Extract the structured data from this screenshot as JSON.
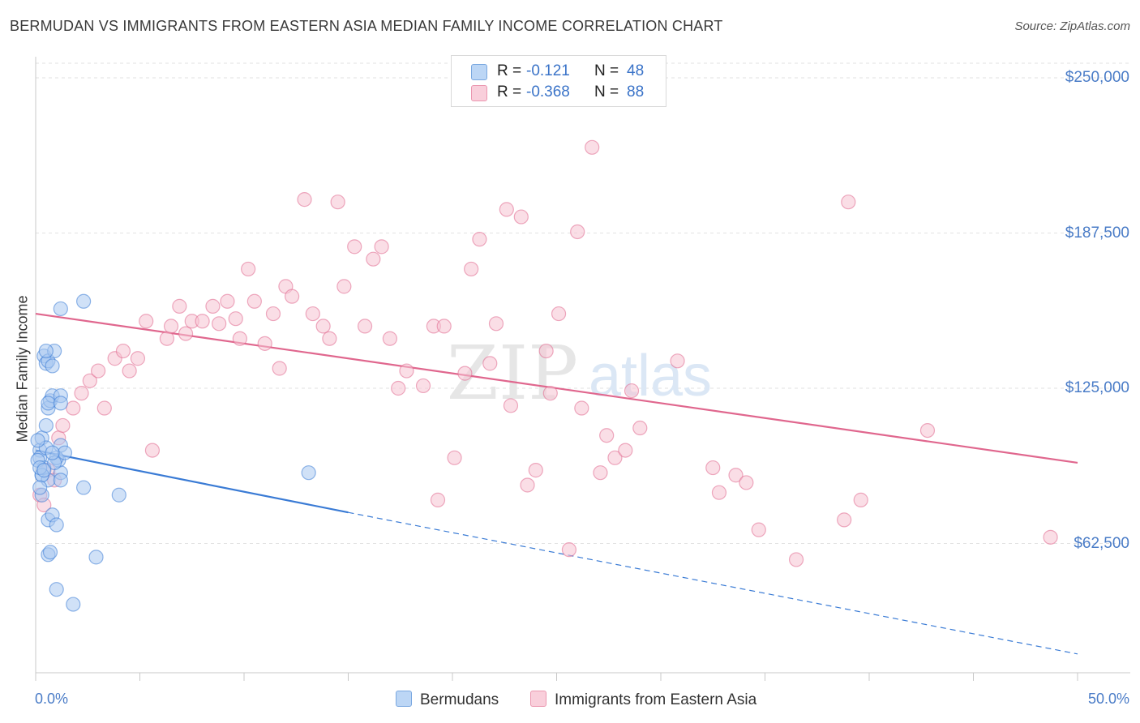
{
  "title": "BERMUDAN VS IMMIGRANTS FROM EASTERN ASIA MEDIAN FAMILY INCOME CORRELATION CHART",
  "source": "Source: ZipAtlas.com",
  "watermark": {
    "zip": "ZIP",
    "atlas": "atlas"
  },
  "stats": {
    "r_label": "R =",
    "n_label": "N =",
    "rows": [
      {
        "r": "-0.121",
        "n": "48",
        "color": "#9ec3ee"
      },
      {
        "r": "-0.368",
        "n": "88",
        "color": "#f5b6c8"
      }
    ]
  },
  "legend": {
    "items": [
      {
        "label": "Bermudans",
        "color": "#9ec3ee"
      },
      {
        "label": "Immigrants from Eastern Asia",
        "color": "#f5b6c8"
      }
    ]
  },
  "chart_data": {
    "type": "scatter",
    "ylabel": "Median Family Income",
    "xlim": [
      0,
      50
    ],
    "ylim": [
      0,
      270000
    ],
    "x_tick_labels": {
      "min": "0.0%",
      "max": "50.0%"
    },
    "y_ticks": [
      {
        "value": 250000,
        "label": "$250,000"
      },
      {
        "value": 187500,
        "label": "$187,500"
      },
      {
        "value": 125000,
        "label": "$125,000"
      },
      {
        "value": 62500,
        "label": "$62,500"
      }
    ],
    "grid": true,
    "legend_position": "bottom-center",
    "series": [
      {
        "name": "Bermudans",
        "color": "#3a7bd5",
        "fill": "#a9c9f0",
        "trend": {
          "x0": 0,
          "y0": 100000,
          "x1": 15,
          "y1": 75000,
          "dashed_to_x": 50,
          "dashed_to_y": 18000
        },
        "points": [
          [
            0.2,
            100000
          ],
          [
            0.2,
            97000
          ],
          [
            0.3,
            90000
          ],
          [
            0.4,
            93000
          ],
          [
            0.3,
            105000
          ],
          [
            0.5,
            101000
          ],
          [
            0.6,
            88000
          ],
          [
            0.5,
            110000
          ],
          [
            0.6,
            117000
          ],
          [
            0.7,
            120000
          ],
          [
            0.8,
            122000
          ],
          [
            0.4,
            138000
          ],
          [
            0.5,
            135000
          ],
          [
            0.6,
            136000
          ],
          [
            0.8,
            134000
          ],
          [
            0.9,
            140000
          ],
          [
            0.5,
            140000
          ],
          [
            0.3,
            82000
          ],
          [
            0.6,
            72000
          ],
          [
            0.8,
            74000
          ],
          [
            1.0,
            70000
          ],
          [
            0.6,
            58000
          ],
          [
            0.7,
            59000
          ],
          [
            1.0,
            44000
          ],
          [
            1.8,
            38000
          ],
          [
            2.9,
            57000
          ],
          [
            1.2,
            91000
          ],
          [
            1.1,
            96000
          ],
          [
            1.2,
            102000
          ],
          [
            1.0,
            97000
          ],
          [
            1.4,
            99000
          ],
          [
            1.2,
            88000
          ],
          [
            1.2,
            122000
          ],
          [
            2.3,
            160000
          ],
          [
            1.2,
            157000
          ],
          [
            2.3,
            85000
          ],
          [
            4.0,
            82000
          ],
          [
            13.1,
            91000
          ],
          [
            0.1,
            104000
          ],
          [
            0.1,
            96000
          ],
          [
            0.3,
            90000
          ],
          [
            0.2,
            93000
          ],
          [
            0.9,
            95000
          ],
          [
            0.4,
            92000
          ],
          [
            0.6,
            119000
          ],
          [
            0.8,
            99000
          ],
          [
            1.2,
            119000
          ],
          [
            0.2,
            85000
          ]
        ]
      },
      {
        "name": "Immigrants from Eastern Asia",
        "color": "#e0678e",
        "fill": "#f6c2d1",
        "trend": {
          "x0": 0,
          "y0": 155000,
          "x1": 50,
          "y1": 95000
        },
        "points": [
          [
            0.2,
            82000
          ],
          [
            0.4,
            78000
          ],
          [
            0.6,
            92000
          ],
          [
            0.9,
            88000
          ],
          [
            1.1,
            105000
          ],
          [
            1.3,
            110000
          ],
          [
            1.8,
            117000
          ],
          [
            2.2,
            123000
          ],
          [
            2.6,
            128000
          ],
          [
            3.0,
            132000
          ],
          [
            3.3,
            117000
          ],
          [
            3.8,
            137000
          ],
          [
            4.2,
            140000
          ],
          [
            4.5,
            132000
          ],
          [
            4.9,
            137000
          ],
          [
            5.3,
            152000
          ],
          [
            5.6,
            100000
          ],
          [
            6.3,
            145000
          ],
          [
            6.5,
            150000
          ],
          [
            6.9,
            158000
          ],
          [
            7.2,
            147000
          ],
          [
            7.5,
            152000
          ],
          [
            8.0,
            152000
          ],
          [
            8.5,
            158000
          ],
          [
            8.8,
            151000
          ],
          [
            9.2,
            160000
          ],
          [
            9.6,
            153000
          ],
          [
            9.8,
            145000
          ],
          [
            10.2,
            173000
          ],
          [
            10.5,
            160000
          ],
          [
            11.0,
            143000
          ],
          [
            11.4,
            155000
          ],
          [
            11.7,
            133000
          ],
          [
            12.0,
            166000
          ],
          [
            12.3,
            162000
          ],
          [
            12.9,
            201000
          ],
          [
            13.3,
            155000
          ],
          [
            13.8,
            150000
          ],
          [
            14.1,
            145000
          ],
          [
            14.5,
            200000
          ],
          [
            14.8,
            166000
          ],
          [
            15.3,
            182000
          ],
          [
            15.8,
            150000
          ],
          [
            16.2,
            177000
          ],
          [
            16.6,
            182000
          ],
          [
            17.0,
            145000
          ],
          [
            17.4,
            125000
          ],
          [
            17.8,
            132000
          ],
          [
            18.6,
            126000
          ],
          [
            19.1,
            150000
          ],
          [
            19.3,
            80000
          ],
          [
            19.6,
            150000
          ],
          [
            20.1,
            97000
          ],
          [
            20.6,
            131000
          ],
          [
            20.9,
            173000
          ],
          [
            21.3,
            185000
          ],
          [
            21.8,
            135000
          ],
          [
            22.1,
            151000
          ],
          [
            22.6,
            197000
          ],
          [
            22.8,
            118000
          ],
          [
            23.3,
            194000
          ],
          [
            23.6,
            86000
          ],
          [
            24.0,
            92000
          ],
          [
            24.5,
            140000
          ],
          [
            24.7,
            123000
          ],
          [
            25.1,
            155000
          ],
          [
            25.6,
            60000
          ],
          [
            26.0,
            188000
          ],
          [
            26.2,
            117000
          ],
          [
            26.7,
            222000
          ],
          [
            27.1,
            91000
          ],
          [
            27.4,
            106000
          ],
          [
            27.8,
            97000
          ],
          [
            28.3,
            100000
          ],
          [
            28.6,
            124000
          ],
          [
            29.0,
            109000
          ],
          [
            30.8,
            136000
          ],
          [
            32.5,
            93000
          ],
          [
            32.8,
            83000
          ],
          [
            33.6,
            90000
          ],
          [
            34.1,
            87000
          ],
          [
            34.7,
            68000
          ],
          [
            36.5,
            56000
          ],
          [
            38.8,
            72000
          ],
          [
            39.0,
            200000
          ],
          [
            39.6,
            80000
          ],
          [
            42.8,
            108000
          ],
          [
            48.7,
            65000
          ]
        ]
      }
    ]
  }
}
